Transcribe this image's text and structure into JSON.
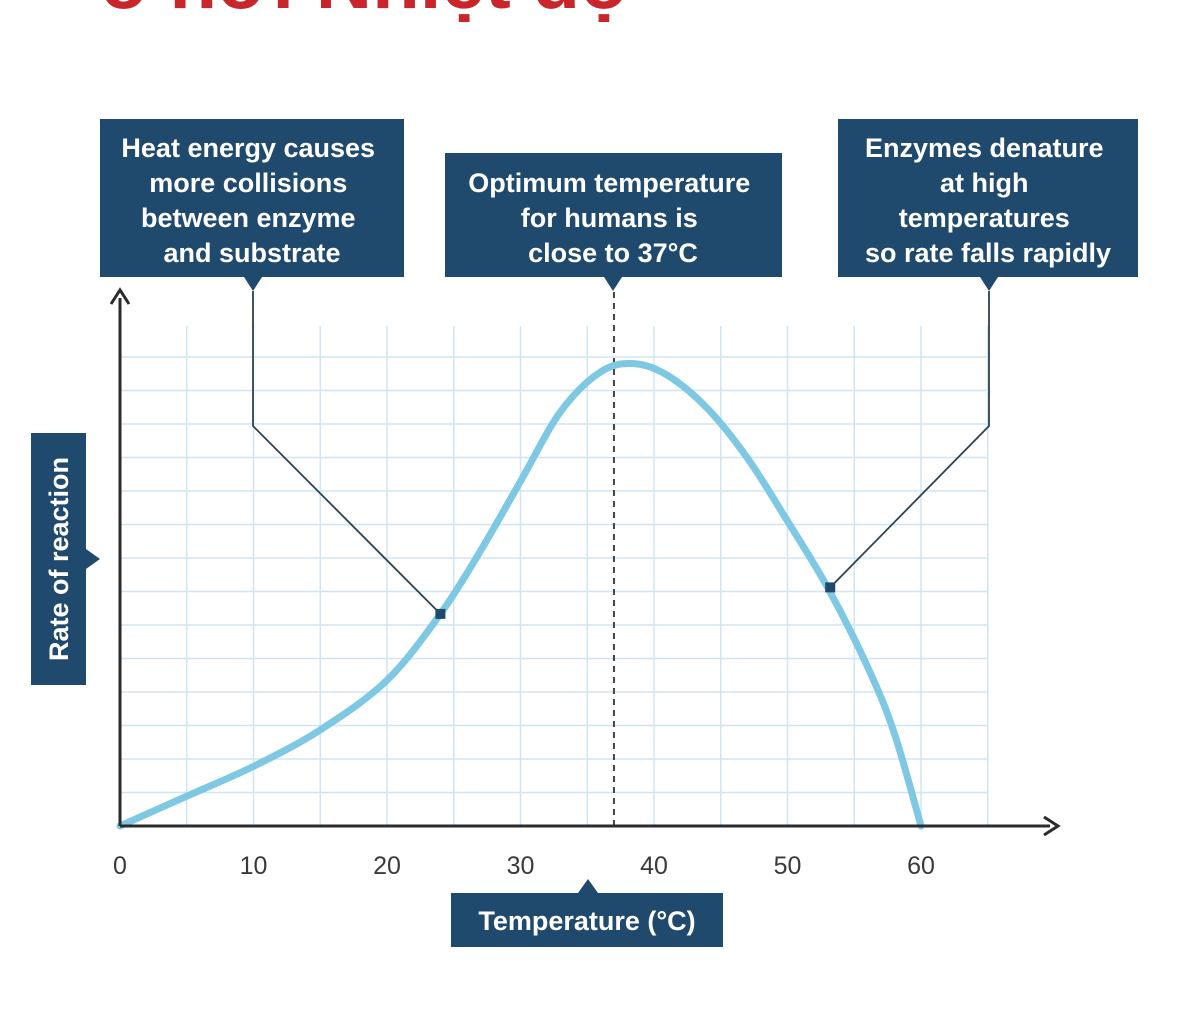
{
  "page": {
    "title": "ổ hởi Nhiệt độ"
  },
  "chart_data": {
    "type": "line",
    "xlabel": "Temperature (°C)",
    "ylabel": "Rate of reaction",
    "xlim": [
      0,
      65
    ],
    "ylim": [
      0,
      14
    ],
    "x_ticks": [
      "0",
      "10",
      "20",
      "30",
      "40",
      "50",
      "60"
    ],
    "y_tick_labels": false,
    "grid": true,
    "series": [
      {
        "color": "#7ec8e3",
        "points": [
          [
            0,
            0
          ],
          [
            5,
            0.9
          ],
          [
            10,
            1.8
          ],
          [
            15,
            2.9
          ],
          [
            20,
            4.4
          ],
          [
            24,
            6.4
          ],
          [
            27,
            8.3
          ],
          [
            30,
            10.4
          ],
          [
            33,
            12.5
          ],
          [
            36,
            13.7
          ],
          [
            38.5,
            13.95
          ],
          [
            41,
            13.6
          ],
          [
            44,
            12.6
          ],
          [
            47,
            11.1
          ],
          [
            50,
            9.2
          ],
          [
            53,
            7.2
          ],
          [
            56,
            4.8
          ],
          [
            58,
            2.8
          ],
          [
            60,
            0
          ]
        ]
      }
    ],
    "optimum_line_x": 37,
    "annotations": [
      {
        "id": "heat",
        "lines": [
          "Heat energy causes",
          "more collisions",
          "between enzyme",
          "and substrate"
        ],
        "point": [
          24,
          6.4
        ]
      },
      {
        "id": "optimum",
        "lines": [
          "Optimum temperature",
          "for humans is",
          "close to 37°C"
        ]
      },
      {
        "id": "denature",
        "lines": [
          "Enzymes denature",
          "at high",
          "temperatures",
          "so rate falls rapidly"
        ],
        "point": [
          53.2,
          7.2
        ]
      }
    ],
    "colors": {
      "box": "#1f4a6e",
      "grid": "#cfe5f3",
      "axis": "#2b2b2b",
      "curve": "#7ec8e3",
      "title": "#c8262b"
    }
  }
}
